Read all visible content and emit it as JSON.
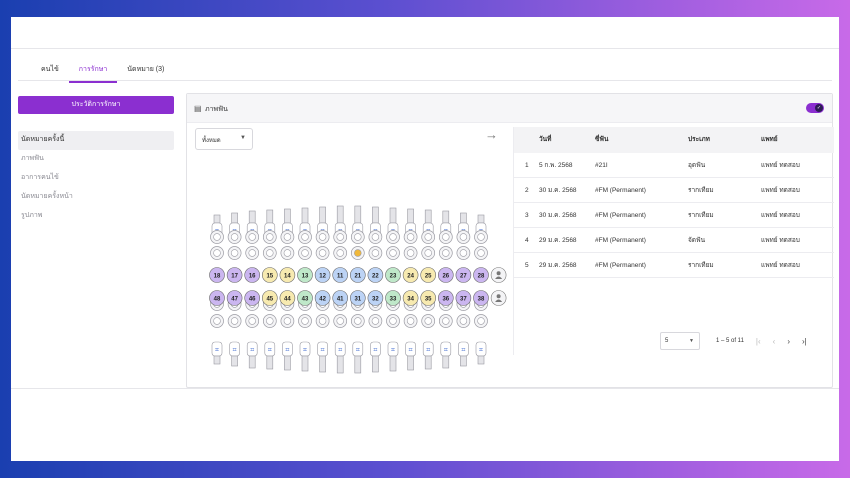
{
  "tabs": [
    {
      "label": "คนไข้",
      "active": false
    },
    {
      "label": "การรักษา",
      "active": true
    },
    {
      "label": "นัดหมาย (3)",
      "active": false
    }
  ],
  "sidebar": {
    "primary_button": "ประวัติการรักษา",
    "items": [
      {
        "label": "นัดหมายครั้งนี้",
        "active": true
      },
      {
        "label": "ภาพฟัน",
        "active": false
      },
      {
        "label": "อาการคนไข้",
        "active": false
      },
      {
        "label": "นัดหมายครั้งหน้า",
        "active": false
      },
      {
        "label": "รูปภาพ",
        "active": false
      }
    ]
  },
  "panel": {
    "title": "ภาพฟัน",
    "title_icon": "tooth-chart-icon",
    "toggle_on": true,
    "filter_value": "ทั้งหมด"
  },
  "teeth": {
    "upper": [
      "18",
      "17",
      "16",
      "15",
      "14",
      "13",
      "12",
      "11",
      "21",
      "22",
      "23",
      "24",
      "25",
      "26",
      "27",
      "28"
    ],
    "lower": [
      "48",
      "47",
      "46",
      "45",
      "44",
      "43",
      "42",
      "41",
      "31",
      "32",
      "33",
      "34",
      "35",
      "36",
      "37",
      "38"
    ],
    "colors": {
      "molar": "#cbb6f0",
      "premolar": "#f7eab0",
      "canine": "#bfe8c9",
      "incisor": "#bcd3f5",
      "marked": "#f0b83a",
      "accent": "#8b2fd0"
    }
  },
  "table": {
    "headers": [
      "วันที่",
      "ซี่ฟัน",
      "ประเภท",
      "แพทย์"
    ],
    "rows": [
      {
        "idx": "1",
        "date": "5 ก.พ. 2568",
        "tooth": "#21I",
        "type": "อุดฟัน",
        "doctor": "แพทย์ ทดสอบ"
      },
      {
        "idx": "2",
        "date": "30 ม.ค. 2568",
        "tooth": "#FM (Permanent)",
        "type": "รากเทียม",
        "doctor": "แพทย์ ทดสอบ"
      },
      {
        "idx": "3",
        "date": "30 ม.ค. 2568",
        "tooth": "#FM (Permanent)",
        "type": "รากเทียม",
        "doctor": "แพทย์ ทดสอบ"
      },
      {
        "idx": "4",
        "date": "29 ม.ค. 2568",
        "tooth": "#FM (Permanent)",
        "type": "จัดฟัน",
        "doctor": "แพทย์ ทดสอบ"
      },
      {
        "idx": "5",
        "date": "29 ม.ค. 2568",
        "tooth": "#FM (Permanent)",
        "type": "รากเทียม",
        "doctor": "แพทย์ ทดสอบ"
      }
    ]
  },
  "pagination": {
    "rows_per_page": "5",
    "range": "1 – 5 of 11"
  }
}
